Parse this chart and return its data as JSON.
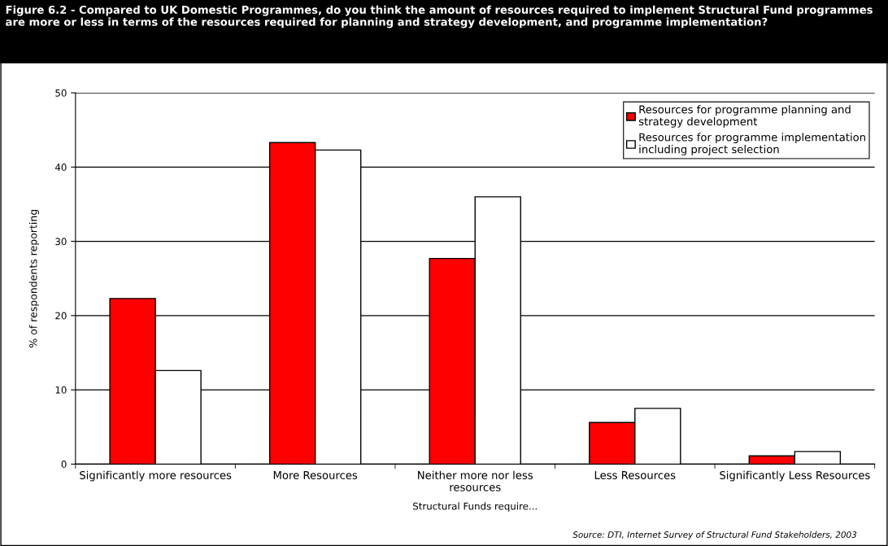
{
  "chart_data": {
    "type": "bar",
    "title": "Figure 6.2 - Compared to UK Domestic Programmes, do you think the amount of resources required to implement Structural Fund programmes are more or less in terms of the resources required for planning and strategy development, and programme implementation?",
    "xlabel": "Structural Funds require...",
    "ylabel": "% of respondents reporting",
    "categories": [
      "Significantly more resources",
      "More Resources",
      "Neither more nor less\nresources",
      "Less Resources",
      "Significantly Less Resources"
    ],
    "series": [
      {
        "name": "Resources for programme planning and\nstrategy development",
        "color": "#ff0000",
        "values": [
          22.3,
          43.3,
          27.7,
          5.6,
          1.1
        ]
      },
      {
        "name": "Resources for programme implementation\nincluding project selection",
        "color": "#ffffff",
        "values": [
          12.6,
          42.3,
          36.0,
          7.5,
          1.7
        ]
      }
    ],
    "ylim": [
      0,
      50
    ],
    "yticks": [
      0,
      10,
      20,
      30,
      40,
      50
    ],
    "grid": "y",
    "legend": "top right",
    "annotations": [
      "Source: DTI, Internet Survey of Structural Fund Stakeholders, 2003"
    ]
  }
}
